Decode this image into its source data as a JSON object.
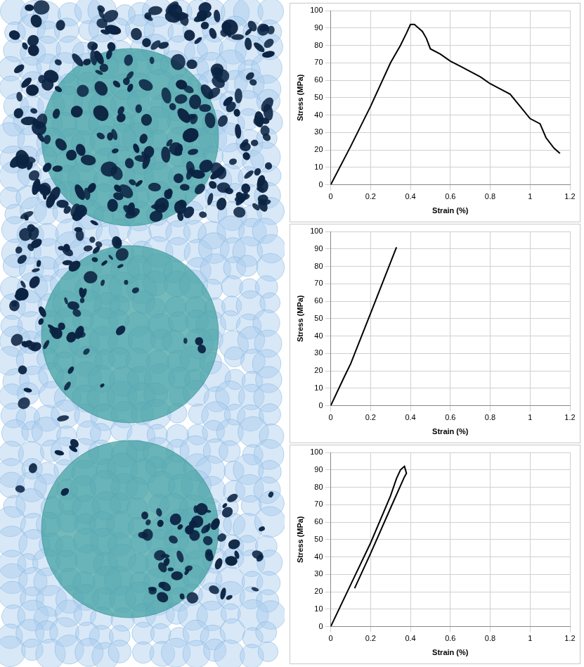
{
  "chart_data": [
    {
      "type": "line",
      "xlabel": "Strain (%)",
      "ylabel": "Stress (MPa)",
      "color": "#000000",
      "grid": true,
      "x": [
        0,
        0.1,
        0.2,
        0.3,
        0.35,
        0.38,
        0.4,
        0.42,
        0.44,
        0.46,
        0.48,
        0.5,
        0.55,
        0.6,
        0.65,
        0.7,
        0.75,
        0.8,
        0.85,
        0.9,
        0.95,
        1.0,
        1.05,
        1.08,
        1.12,
        1.15
      ],
      "values": [
        0,
        22,
        45,
        70,
        80,
        87,
        92,
        92,
        90,
        88,
        84,
        78,
        75,
        71,
        68,
        65,
        62,
        58,
        55,
        52,
        45,
        38,
        35,
        27,
        21,
        18
      ],
      "xlim": [
        0,
        1.2
      ],
      "xticks": [
        0,
        0.2,
        0.4,
        0.6,
        0.8,
        1,
        1.2
      ],
      "ylim": [
        0,
        100
      ],
      "yticks": [
        0,
        10,
        20,
        30,
        40,
        50,
        60,
        70,
        80,
        90,
        100
      ]
    },
    {
      "type": "line",
      "xlabel": "Strain (%)",
      "ylabel": "Stress (MPa)",
      "color": "#000000",
      "grid": true,
      "x": [
        0,
        0.07,
        0.1,
        0.2,
        0.33
      ],
      "values": [
        0,
        17,
        24,
        53,
        91
      ],
      "xlim": [
        0,
        1.2
      ],
      "xticks": [
        0,
        0.2,
        0.4,
        0.6,
        0.8,
        1,
        1.2
      ],
      "ylim": [
        0,
        100
      ],
      "yticks": [
        0,
        10,
        20,
        30,
        40,
        50,
        60,
        70,
        80,
        90,
        100
      ]
    },
    {
      "type": "line",
      "xlabel": "Strain (%)",
      "ylabel": "Stress (MPa)",
      "color": "#000000",
      "grid": true,
      "x": [
        0,
        0.1,
        0.2,
        0.3,
        0.33,
        0.35,
        0.37,
        0.38,
        0.37,
        0.3,
        0.2,
        0.12
      ],
      "values": [
        0,
        24,
        48,
        75,
        85,
        90,
        92,
        88,
        86,
        68,
        42,
        22
      ],
      "xlim": [
        0,
        1.2
      ],
      "xticks": [
        0,
        0.2,
        0.4,
        0.6,
        0.8,
        1,
        1.2
      ],
      "ylim": [
        0,
        100
      ],
      "yticks": [
        0,
        10,
        20,
        30,
        40,
        50,
        60,
        70,
        80,
        90,
        100
      ]
    }
  ]
}
